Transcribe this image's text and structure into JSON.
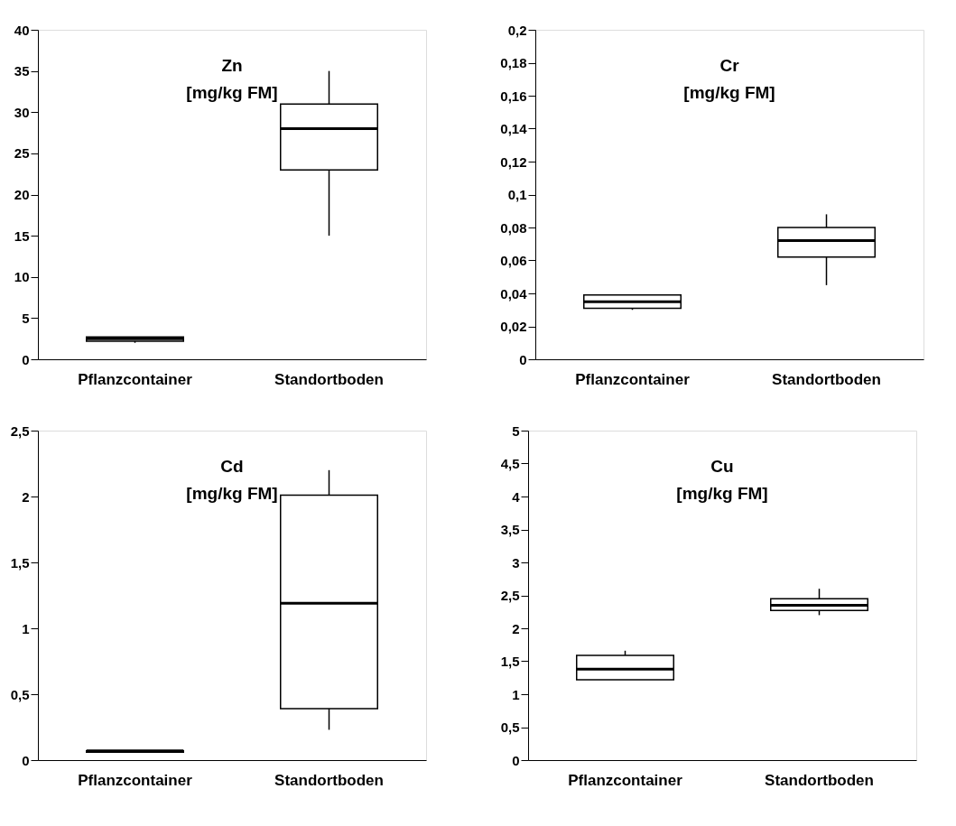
{
  "chart_data": [
    {
      "type": "box",
      "title": "Zn",
      "subtitle": "[mg/kg FM]",
      "categories": [
        "Pflanzcontainer",
        "Standortboden"
      ],
      "boxes": [
        {
          "low": 2.0,
          "q1": 2.2,
          "median": 2.5,
          "q3": 2.7,
          "high": 2.7
        },
        {
          "low": 15,
          "q1": 23,
          "median": 28,
          "q3": 31,
          "high": 35
        }
      ],
      "ylim": [
        0,
        40
      ],
      "yticks": [
        0,
        5,
        10,
        15,
        20,
        25,
        30,
        35,
        40
      ],
      "grid": false
    },
    {
      "type": "box",
      "title": "Cr",
      "subtitle": "[mg/kg FM]",
      "categories": [
        "Pflanzcontainer",
        "Standortboden"
      ],
      "boxes": [
        {
          "low": 0.03,
          "q1": 0.031,
          "median": 0.035,
          "q3": 0.039,
          "high": 0.039
        },
        {
          "low": 0.045,
          "q1": 0.062,
          "median": 0.072,
          "q3": 0.08,
          "high": 0.088
        }
      ],
      "ylim": [
        0,
        0.2
      ],
      "yticks": [
        0,
        {
          "value": 0.02,
          "label": "0,02"
        },
        {
          "value": 0.04,
          "label": "0,04"
        },
        {
          "value": 0.06,
          "label": "0,06"
        },
        {
          "value": 0.08,
          "label": "0,08"
        },
        {
          "value": 0.1,
          "label": "0,1"
        },
        {
          "value": 0.12,
          "label": "0,12"
        },
        {
          "value": 0.14,
          "label": "0,14"
        },
        {
          "value": 0.16,
          "label": "0,16"
        },
        {
          "value": 0.18,
          "label": "0,18"
        },
        {
          "value": 0.2,
          "label": "0,2"
        }
      ],
      "grid": false
    },
    {
      "type": "box",
      "title": "Cd",
      "subtitle": "[mg/kg FM]",
      "categories": [
        "Pflanzcontainer",
        "Standortboden"
      ],
      "boxes": [
        {
          "low": 0.06,
          "q1": 0.06,
          "median": 0.07,
          "q3": 0.07,
          "high": 0.07
        },
        {
          "low": 0.23,
          "q1": 0.39,
          "median": 1.19,
          "q3": 2.01,
          "high": 2.2
        }
      ],
      "ylim": [
        0,
        2.5
      ],
      "yticks": [
        0,
        {
          "value": 0.5,
          "label": "0,5"
        },
        1,
        {
          "value": 1.5,
          "label": "1,5"
        },
        2,
        {
          "value": 2.5,
          "label": "2,5"
        }
      ],
      "grid": false
    },
    {
      "type": "box",
      "title": "Cu",
      "subtitle": "[mg/kg FM]",
      "categories": [
        "Pflanzcontainer",
        "Standortboden"
      ],
      "boxes": [
        {
          "low": 1.22,
          "q1": 1.22,
          "median": 1.38,
          "q3": 1.59,
          "high": 1.66
        },
        {
          "low": 2.2,
          "q1": 2.27,
          "median": 2.35,
          "q3": 2.45,
          "high": 2.6
        }
      ],
      "ylim": [
        0,
        5
      ],
      "yticks": [
        0,
        {
          "value": 0.5,
          "label": "0,5"
        },
        1,
        {
          "value": 1.5,
          "label": "1,5"
        },
        2,
        {
          "value": 2.5,
          "label": "2,5"
        },
        3,
        {
          "value": 3.5,
          "label": "3,5"
        },
        4,
        {
          "value": 4.5,
          "label": "4,5"
        },
        5
      ],
      "grid": false
    }
  ]
}
